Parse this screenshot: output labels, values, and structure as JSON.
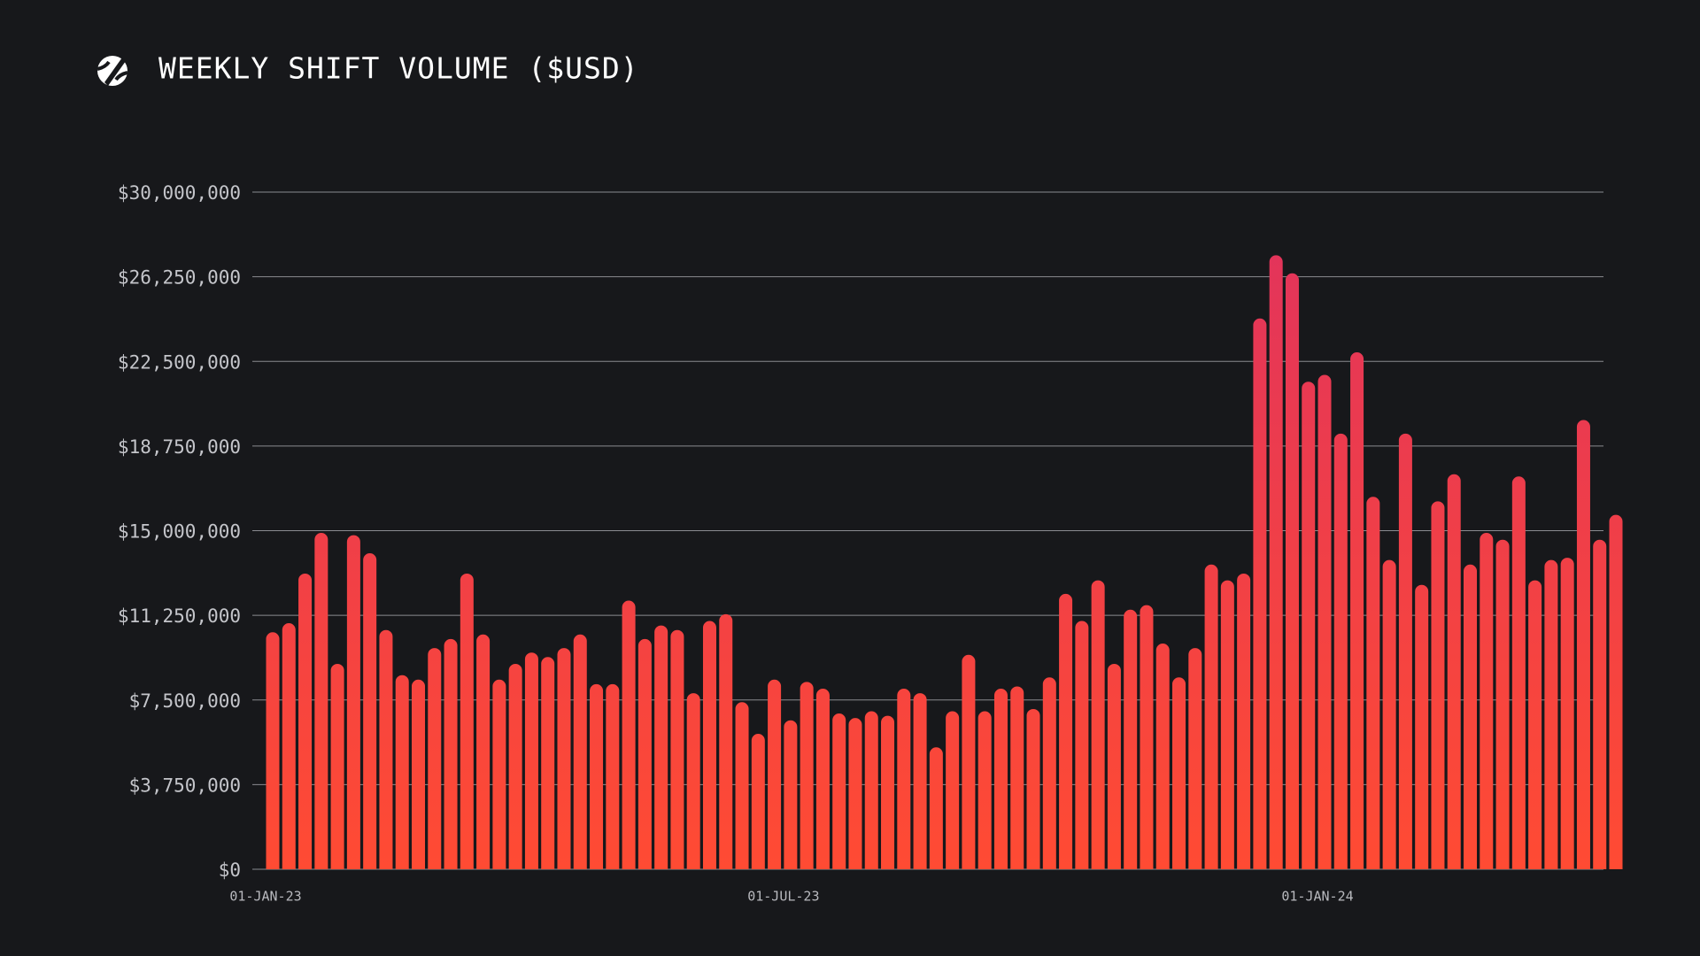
{
  "chart_data": {
    "type": "bar",
    "title": "WEEKLY SHIFT VOLUME ($USD)",
    "categories": [
      "01-JAN-23",
      null,
      null,
      null,
      null,
      null,
      null,
      null,
      null,
      null,
      null,
      null,
      null,
      null,
      null,
      null,
      null,
      null,
      null,
      null,
      null,
      null,
      null,
      null,
      null,
      null,
      null,
      null,
      null,
      null,
      null,
      null,
      "01-JUL-23",
      null,
      null,
      null,
      null,
      null,
      null,
      null,
      null,
      null,
      null,
      null,
      null,
      null,
      null,
      null,
      null,
      null,
      null,
      null,
      null,
      null,
      null,
      null,
      null,
      null,
      null,
      null,
      null,
      null,
      null,
      null,
      null,
      "01-JAN-24",
      null,
      null,
      null,
      null,
      null,
      null,
      null,
      null,
      null,
      null,
      null,
      null,
      null,
      null,
      null,
      null,
      null,
      null
    ],
    "values": [
      10500000,
      10900000,
      13100000,
      14900000,
      9100000,
      14800000,
      14000000,
      10600000,
      8600000,
      8400000,
      9800000,
      10200000,
      13100000,
      10400000,
      8400000,
      9100000,
      9600000,
      9400000,
      9800000,
      10400000,
      8200000,
      8200000,
      11900000,
      10200000,
      10800000,
      10600000,
      7800000,
      11000000,
      11300000,
      7400000,
      6000000,
      8400000,
      6600000,
      8300000,
      8000000,
      6900000,
      6700000,
      7000000,
      6800000,
      8000000,
      7800000,
      5400000,
      7000000,
      9500000,
      7000000,
      8000000,
      8100000,
      7100000,
      8500000,
      12200000,
      11000000,
      12800000,
      9100000,
      11500000,
      11700000,
      10000000,
      8500000,
      9800000,
      13500000,
      12800000,
      13100000,
      24400000,
      27200000,
      26400000,
      21600000,
      21900000,
      19300000,
      22900000,
      16500000,
      13700000,
      19300000,
      12600000,
      16300000,
      17500000,
      13500000,
      14900000,
      14600000,
      17400000,
      12800000,
      13700000,
      13800000,
      19900000,
      14600000,
      15700000
    ],
    "gradient": [
      "#e0325e",
      "#ff4b33"
    ],
    "ylim": [
      0,
      30000000
    ],
    "yticks": [
      {
        "value": 0,
        "label": "$0"
      },
      {
        "value": 3750000,
        "label": "$3,750,000"
      },
      {
        "value": 7500000,
        "label": "$7,500,000"
      },
      {
        "value": 11250000,
        "label": "$11,250,000"
      },
      {
        "value": 15000000,
        "label": "$15,000,000"
      },
      {
        "value": 18750000,
        "label": "$18,750,000"
      },
      {
        "value": 22500000,
        "label": "$22,500,000"
      },
      {
        "value": 26250000,
        "label": "$26,250,000"
      },
      {
        "value": 30000000,
        "label": "$30,000,000"
      }
    ],
    "grid": true
  }
}
